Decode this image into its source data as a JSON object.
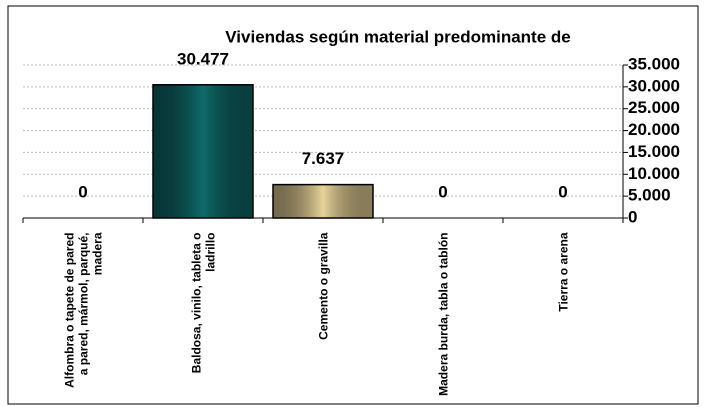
{
  "chart_data": {
    "type": "bar",
    "title": "Viviendas según  material predominante de",
    "categories": [
      "Alfombra o tapete de pared a pared, mármol, parqué,  madera",
      "Baldosa, vinilo, tableta o ladrillo",
      "Cemento o gravilla",
      "Madera burda, tabla o tablón",
      "Tierra o arena"
    ],
    "values": [
      0,
      30477,
      7637,
      0,
      0
    ],
    "value_labels": [
      "0",
      "30.477",
      "7.637",
      "0",
      "0"
    ],
    "colors": [
      "#0f6b6b",
      "#0f6b6b",
      "#e8d49a",
      "#0f6b6b",
      "#0f6b6b"
    ],
    "ylim": [
      0,
      35000
    ],
    "yticks": [
      {
        "value": 0,
        "label": "0"
      },
      {
        "value": 5000,
        "label": "5.000"
      },
      {
        "value": 10000,
        "label": "10.000"
      },
      {
        "value": 15000,
        "label": "15.000"
      },
      {
        "value": 20000,
        "label": "20.000"
      },
      {
        "value": 25000,
        "label": "25.000"
      },
      {
        "value": 30000,
        "label": "30.000"
      },
      {
        "value": 35000,
        "label": "35.000"
      }
    ],
    "grid": true
  }
}
